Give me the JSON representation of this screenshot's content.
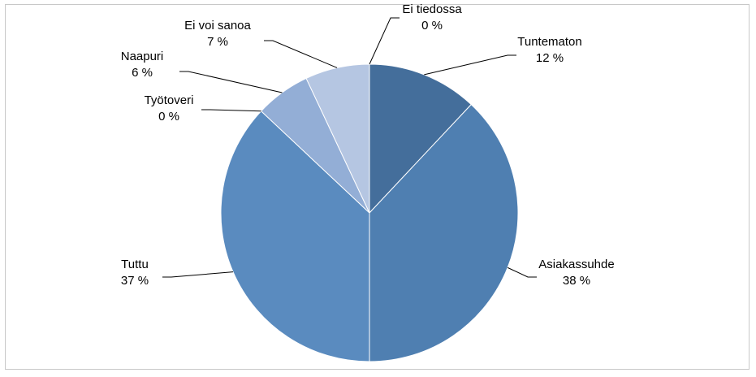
{
  "chart_data": {
    "type": "pie",
    "title": "",
    "categories": [
      "Tuntematon",
      "Asiakassuhde",
      "Tuttu",
      "Työtoveri",
      "Naapuri",
      "Ei voi sanoa",
      "Ei tiedossa"
    ],
    "values": [
      12,
      38,
      37,
      0,
      6,
      7,
      0
    ],
    "value_labels": [
      "12 %",
      "38 %",
      "37 %",
      "0 %",
      "6 %",
      "7 %",
      "0 %"
    ],
    "colors": [
      "#446e9b",
      "#4f7fb1",
      "#5a8bbf",
      "#7a9dcb",
      "#93aed6",
      "#b5c6e2",
      "#c8d4e8"
    ],
    "start": "12 o'clock",
    "direction": "clockwise",
    "legend": "none",
    "labels": "outside with leader lines"
  }
}
